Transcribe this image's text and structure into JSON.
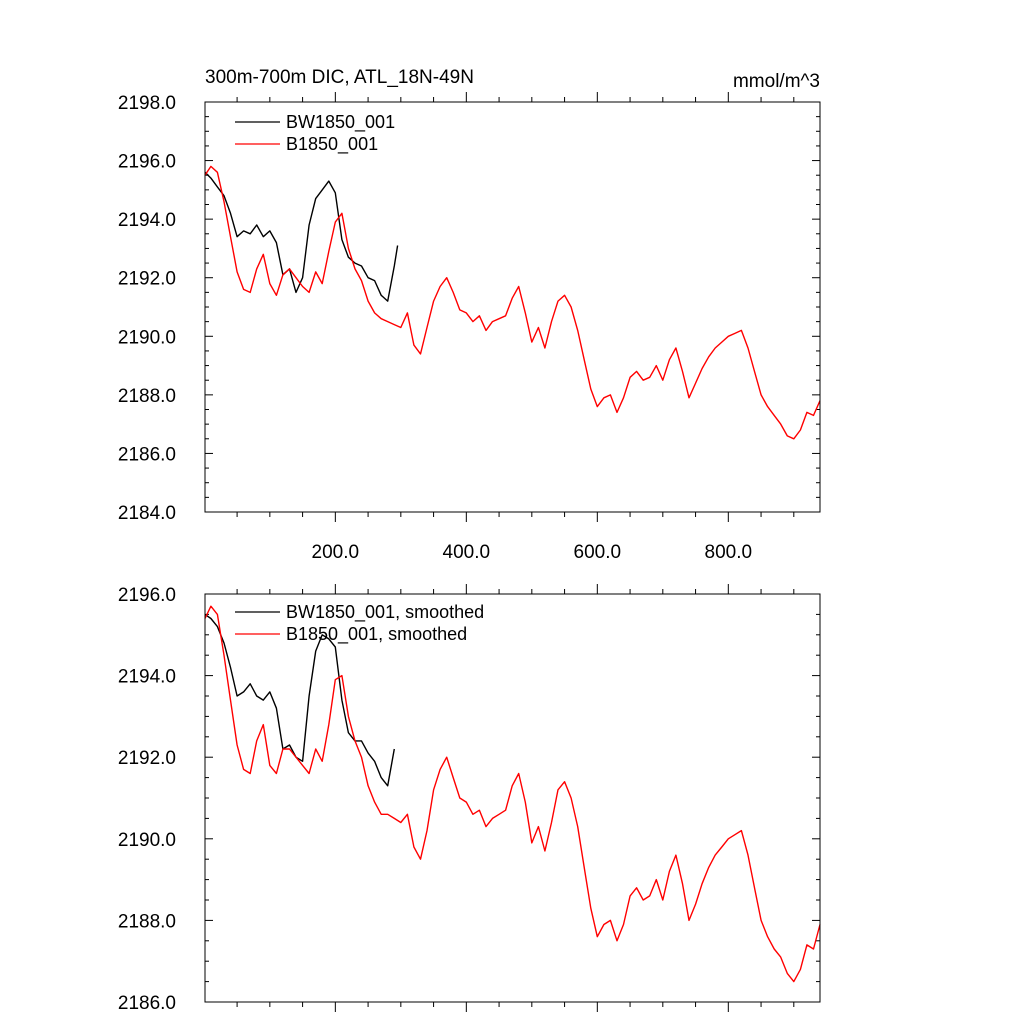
{
  "chart_data": [
    {
      "type": "line",
      "title": "300m-700m DIC, ATL_18N-49N",
      "units": "mmol/m^3",
      "xlabel": "",
      "ylabel": "",
      "xlim": [
        1,
        940
      ],
      "ylim": [
        2184,
        2198
      ],
      "xticks": [
        200,
        400,
        600,
        800
      ],
      "xtick_labels": [
        "200.0",
        "400.0",
        "600.0",
        "800.0"
      ],
      "yticks": [
        2184,
        2186,
        2188,
        2190,
        2192,
        2194,
        2196,
        2198
      ],
      "ytick_labels": [
        "2184.0",
        "2186.0",
        "2188.0",
        "2190.0",
        "2192.0",
        "2194.0",
        "2196.0",
        "2198.0"
      ],
      "legend_position": "top-left",
      "grid": false,
      "series": [
        {
          "name": "BW1850_001",
          "color": "#000000",
          "x": [
            1,
            10,
            20,
            30,
            40,
            50,
            60,
            70,
            80,
            90,
            100,
            110,
            120,
            130,
            140,
            150,
            160,
            170,
            180,
            190,
            200,
            210,
            220,
            230,
            240,
            250,
            260,
            270,
            280,
            290,
            295
          ],
          "y": [
            2195.6,
            2195.4,
            2195.1,
            2194.8,
            2194.2,
            2193.4,
            2193.6,
            2193.5,
            2193.8,
            2193.4,
            2193.6,
            2193.2,
            2192.1,
            2192.3,
            2191.5,
            2192.0,
            2193.8,
            2194.7,
            2195.0,
            2195.3,
            2194.9,
            2193.3,
            2192.7,
            2192.5,
            2192.4,
            2192.0,
            2191.9,
            2191.4,
            2191.2,
            2192.4,
            2193.1
          ]
        },
        {
          "name": "B1850_001",
          "color": "#ff0000",
          "x": [
            1,
            10,
            20,
            30,
            40,
            50,
            60,
            70,
            80,
            90,
            100,
            110,
            120,
            130,
            140,
            150,
            160,
            170,
            180,
            190,
            200,
            210,
            220,
            230,
            240,
            250,
            260,
            270,
            280,
            290,
            300,
            310,
            320,
            330,
            340,
            350,
            360,
            370,
            380,
            390,
            400,
            410,
            420,
            430,
            440,
            450,
            460,
            470,
            480,
            490,
            500,
            510,
            520,
            530,
            540,
            550,
            560,
            570,
            580,
            590,
            600,
            610,
            620,
            630,
            640,
            650,
            660,
            670,
            680,
            690,
            700,
            710,
            720,
            730,
            740,
            750,
            760,
            770,
            780,
            790,
            800,
            810,
            820,
            830,
            840,
            850,
            860,
            870,
            880,
            890,
            900,
            910,
            920,
            930,
            940
          ],
          "y": [
            2195.5,
            2195.8,
            2195.6,
            2194.6,
            2193.4,
            2192.2,
            2191.6,
            2191.5,
            2192.3,
            2192.8,
            2191.8,
            2191.4,
            2192.1,
            2192.3,
            2192.0,
            2191.7,
            2191.5,
            2192.2,
            2191.8,
            2192.9,
            2193.9,
            2194.2,
            2193.0,
            2192.3,
            2191.9,
            2191.2,
            2190.8,
            2190.6,
            2190.5,
            2190.4,
            2190.3,
            2190.8,
            2189.7,
            2189.4,
            2190.3,
            2191.2,
            2191.7,
            2192.0,
            2191.5,
            2190.9,
            2190.8,
            2190.5,
            2190.7,
            2190.2,
            2190.5,
            2190.6,
            2190.7,
            2191.3,
            2191.7,
            2190.8,
            2189.8,
            2190.3,
            2189.6,
            2190.5,
            2191.2,
            2191.4,
            2191.0,
            2190.2,
            2189.2,
            2188.2,
            2187.6,
            2187.9,
            2188.0,
            2187.4,
            2187.9,
            2188.6,
            2188.8,
            2188.5,
            2188.6,
            2189.0,
            2188.5,
            2189.2,
            2189.6,
            2188.8,
            2187.9,
            2188.4,
            2188.9,
            2189.3,
            2189.6,
            2189.8,
            2190.0,
            2190.1,
            2190.2,
            2189.6,
            2188.8,
            2188.0,
            2187.6,
            2187.3,
            2187.0,
            2186.6,
            2186.5,
            2186.8,
            2187.4,
            2187.3,
            2187.8
          ]
        }
      ]
    },
    {
      "type": "line",
      "title": "",
      "xlabel": "",
      "ylabel": "",
      "xlim": [
        1,
        940
      ],
      "ylim": [
        2186,
        2196
      ],
      "xticks": [
        200,
        400,
        600,
        800
      ],
      "yticks": [
        2186,
        2188,
        2190,
        2192,
        2194,
        2196
      ],
      "ytick_labels": [
        "2186.0",
        "2188.0",
        "2190.0",
        "2192.0",
        "2194.0",
        "2196.0"
      ],
      "legend_position": "top-left",
      "grid": false,
      "series": [
        {
          "name": "BW1850_001, smoothed",
          "color": "#000000",
          "x": [
            1,
            10,
            20,
            30,
            40,
            50,
            60,
            70,
            80,
            90,
            100,
            110,
            120,
            130,
            140,
            150,
            160,
            170,
            180,
            190,
            200,
            210,
            220,
            230,
            240,
            250,
            260,
            270,
            280,
            290
          ],
          "y": [
            2195.5,
            2195.4,
            2195.2,
            2194.8,
            2194.2,
            2193.5,
            2193.6,
            2193.8,
            2193.5,
            2193.4,
            2193.6,
            2193.2,
            2192.2,
            2192.3,
            2192.0,
            2191.9,
            2193.5,
            2194.6,
            2195.0,
            2194.9,
            2194.7,
            2193.4,
            2192.6,
            2192.4,
            2192.4,
            2192.1,
            2191.9,
            2191.5,
            2191.3,
            2192.2
          ]
        },
        {
          "name": "B1850_001, smoothed",
          "color": "#ff0000",
          "x": [
            1,
            10,
            20,
            30,
            40,
            50,
            60,
            70,
            80,
            90,
            100,
            110,
            120,
            130,
            140,
            150,
            160,
            170,
            180,
            190,
            200,
            210,
            220,
            230,
            240,
            250,
            260,
            270,
            280,
            290,
            300,
            310,
            320,
            330,
            340,
            350,
            360,
            370,
            380,
            390,
            400,
            410,
            420,
            430,
            440,
            450,
            460,
            470,
            480,
            490,
            500,
            510,
            520,
            530,
            540,
            550,
            560,
            570,
            580,
            590,
            600,
            610,
            620,
            630,
            640,
            650,
            660,
            670,
            680,
            690,
            700,
            710,
            720,
            730,
            740,
            750,
            760,
            770,
            780,
            790,
            800,
            810,
            820,
            830,
            840,
            850,
            860,
            870,
            880,
            890,
            900,
            910,
            920,
            930,
            940
          ],
          "y": [
            2195.4,
            2195.7,
            2195.5,
            2194.5,
            2193.4,
            2192.3,
            2191.7,
            2191.6,
            2192.4,
            2192.8,
            2191.8,
            2191.6,
            2192.2,
            2192.2,
            2192.0,
            2191.8,
            2191.6,
            2192.2,
            2191.9,
            2192.8,
            2193.9,
            2194.0,
            2193.0,
            2192.4,
            2192.0,
            2191.3,
            2190.9,
            2190.6,
            2190.6,
            2190.5,
            2190.4,
            2190.6,
            2189.8,
            2189.5,
            2190.2,
            2191.2,
            2191.7,
            2192.0,
            2191.5,
            2191.0,
            2190.9,
            2190.6,
            2190.7,
            2190.3,
            2190.5,
            2190.6,
            2190.7,
            2191.3,
            2191.6,
            2190.9,
            2189.9,
            2190.3,
            2189.7,
            2190.4,
            2191.2,
            2191.4,
            2191.0,
            2190.3,
            2189.3,
            2188.3,
            2187.6,
            2187.9,
            2188.0,
            2187.5,
            2187.9,
            2188.6,
            2188.8,
            2188.5,
            2188.6,
            2189.0,
            2188.5,
            2189.2,
            2189.6,
            2188.9,
            2188.0,
            2188.4,
            2188.9,
            2189.3,
            2189.6,
            2189.8,
            2190.0,
            2190.1,
            2190.2,
            2189.6,
            2188.8,
            2188.0,
            2187.6,
            2187.3,
            2187.1,
            2186.7,
            2186.5,
            2186.8,
            2187.4,
            2187.3,
            2187.9
          ]
        }
      ]
    }
  ]
}
